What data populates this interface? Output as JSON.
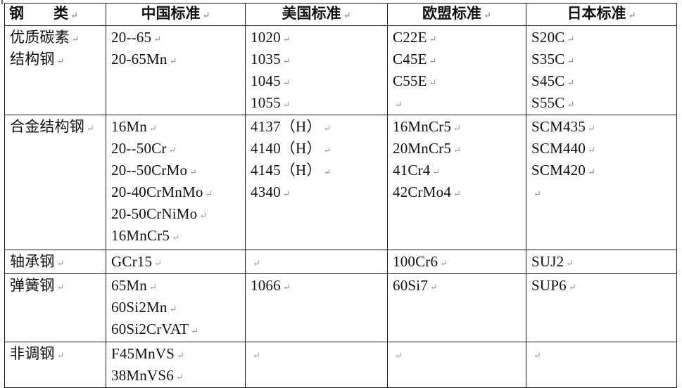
{
  "marks": {
    "paragraph": "↵"
  },
  "colors": {
    "text": "#111111",
    "border": "#1c1c1c",
    "formatting_mark": "#8f959c",
    "background": "#ffffff"
  },
  "table": {
    "headers": [
      {
        "label": "钢　　类",
        "align": "left"
      },
      {
        "label": "中国标准",
        "align": "center"
      },
      {
        "label": "美国标准",
        "align": "center"
      },
      {
        "label": "欧盟标准",
        "align": "center"
      },
      {
        "label": "日本标准",
        "align": "center"
      }
    ],
    "rows": [
      {
        "cells": [
          {
            "lines": [
              "优质碳素",
              "结构钢"
            ]
          },
          {
            "lines": [
              "20--65",
              "20-65Mn"
            ]
          },
          {
            "lines": [
              "1020",
              "1035",
              "1045",
              "1055"
            ]
          },
          {
            "lines": [
              "C22E",
              "C45E",
              "C55E",
              ""
            ]
          },
          {
            "lines": [
              "S20C",
              "S35C",
              "S45C",
              "S55C"
            ]
          }
        ]
      },
      {
        "cells": [
          {
            "lines": [
              "合金结构钢"
            ]
          },
          {
            "lines": [
              "16Mn",
              "20--50Cr",
              "20--50CrMo",
              "20-40CrMnMo",
              "20-50CrNiMo",
              "16MnCr5"
            ]
          },
          {
            "lines": [
              "4137（H）",
              "4140（H）",
              "4145（H）",
              "4340"
            ]
          },
          {
            "lines": [
              "16MnCr5",
              "20MnCr5",
              "41Cr4",
              "42CrMo4"
            ]
          },
          {
            "lines": [
              "SCM435",
              "SCM440",
              "SCM420",
              ""
            ]
          }
        ]
      },
      {
        "cells": [
          {
            "lines": [
              "轴承钢"
            ]
          },
          {
            "lines": [
              "GCr15"
            ]
          },
          {
            "lines": [
              ""
            ]
          },
          {
            "lines": [
              "100Cr6"
            ]
          },
          {
            "lines": [
              "SUJ2"
            ]
          }
        ]
      },
      {
        "cells": [
          {
            "lines": [
              "弹簧钢"
            ]
          },
          {
            "lines": [
              "65Mn",
              "60Si2Mn",
              "60Si2CrVAT"
            ]
          },
          {
            "lines": [
              "1066"
            ]
          },
          {
            "lines": [
              "60Si7"
            ]
          },
          {
            "lines": [
              "SUP6"
            ]
          }
        ]
      },
      {
        "cells": [
          {
            "lines": [
              "非调钢"
            ]
          },
          {
            "lines": [
              "F45MnVS",
              "38MnVS6"
            ]
          },
          {
            "lines": [
              ""
            ]
          },
          {
            "lines": [
              ""
            ]
          },
          {
            "lines": [
              ""
            ]
          }
        ]
      }
    ]
  }
}
